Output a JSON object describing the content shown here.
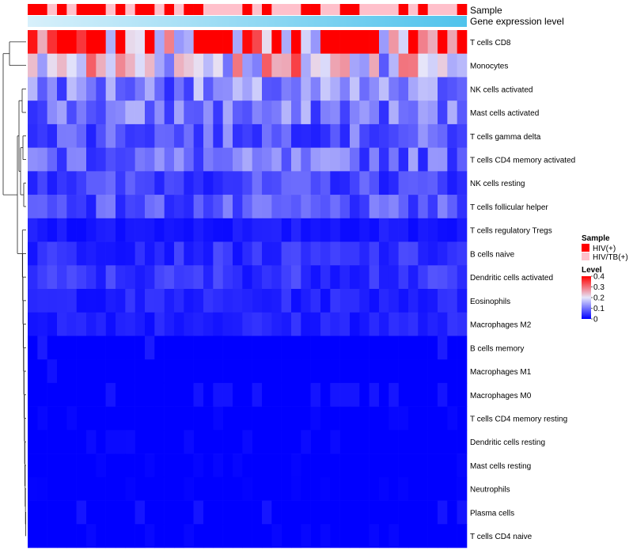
{
  "chart_data": {
    "type": "heatmap",
    "annotation_tracks": [
      {
        "label": "Sample"
      },
      {
        "label": "Gene expression level"
      }
    ],
    "rows": [
      "T cells CD8",
      "Monocytes",
      "NK cells activated",
      "Mast cells activated",
      "T cells gamma delta",
      "T cells CD4 memory activated",
      "NK cells resting",
      "T cells follicular helper",
      "T cells regulatory  Tregs",
      "B cells naive",
      "Dendritic cells activated",
      "Eosinophils",
      "Macrophages M2",
      "B cells memory",
      "Macrophages M1",
      "Macrophages M0",
      "T cells CD4 memory resting",
      "Dendritic cells resting",
      "Mast cells resting",
      "Neutrophils",
      "Plasma cells",
      "T cells CD4 naive"
    ],
    "row_means": [
      0.34,
      0.22,
      0.11,
      0.1,
      0.08,
      0.09,
      0.06,
      0.07,
      0.02,
      0.04,
      0.045,
      0.03,
      0.03,
      0.015,
      0.01,
      0.012,
      0.004,
      0.006,
      0.003,
      0.002,
      0.012,
      0.004
    ],
    "n_columns": 45,
    "sample_groups": [
      0,
      0,
      1,
      0,
      1,
      0,
      0,
      0,
      1,
      0,
      1,
      0,
      0,
      1,
      0,
      1,
      0,
      0,
      1,
      1,
      1,
      1,
      0,
      1,
      0,
      1,
      1,
      1,
      0,
      0,
      1,
      1,
      0,
      0,
      1,
      1,
      1,
      1,
      0,
      1,
      0,
      1,
      1,
      1,
      0
    ],
    "color_scale": {
      "min": 0,
      "max": 0.4,
      "low_color": "#0000ff",
      "mid_color": "#e6e6fa",
      "high_color": "#ff0000"
    },
    "legend": {
      "sample_title": "Sample",
      "sample_entries": [
        {
          "label": "HIV(+)",
          "color": "#ff0000"
        },
        {
          "label": "HIV/TB(+)",
          "color": "#ffc0cb"
        }
      ],
      "level_title": "Level",
      "level_ticks": [
        {
          "value": 0.4,
          "label": "0.4"
        },
        {
          "value": 0.3,
          "label": "0.3"
        },
        {
          "value": 0.2,
          "label": "0.2"
        },
        {
          "value": 0.1,
          "label": "0.1"
        },
        {
          "value": 0,
          "label": "0"
        }
      ]
    },
    "expression_gradient": {
      "low_color": "#d8f0fb",
      "high_color": "#4fc3ec"
    }
  }
}
